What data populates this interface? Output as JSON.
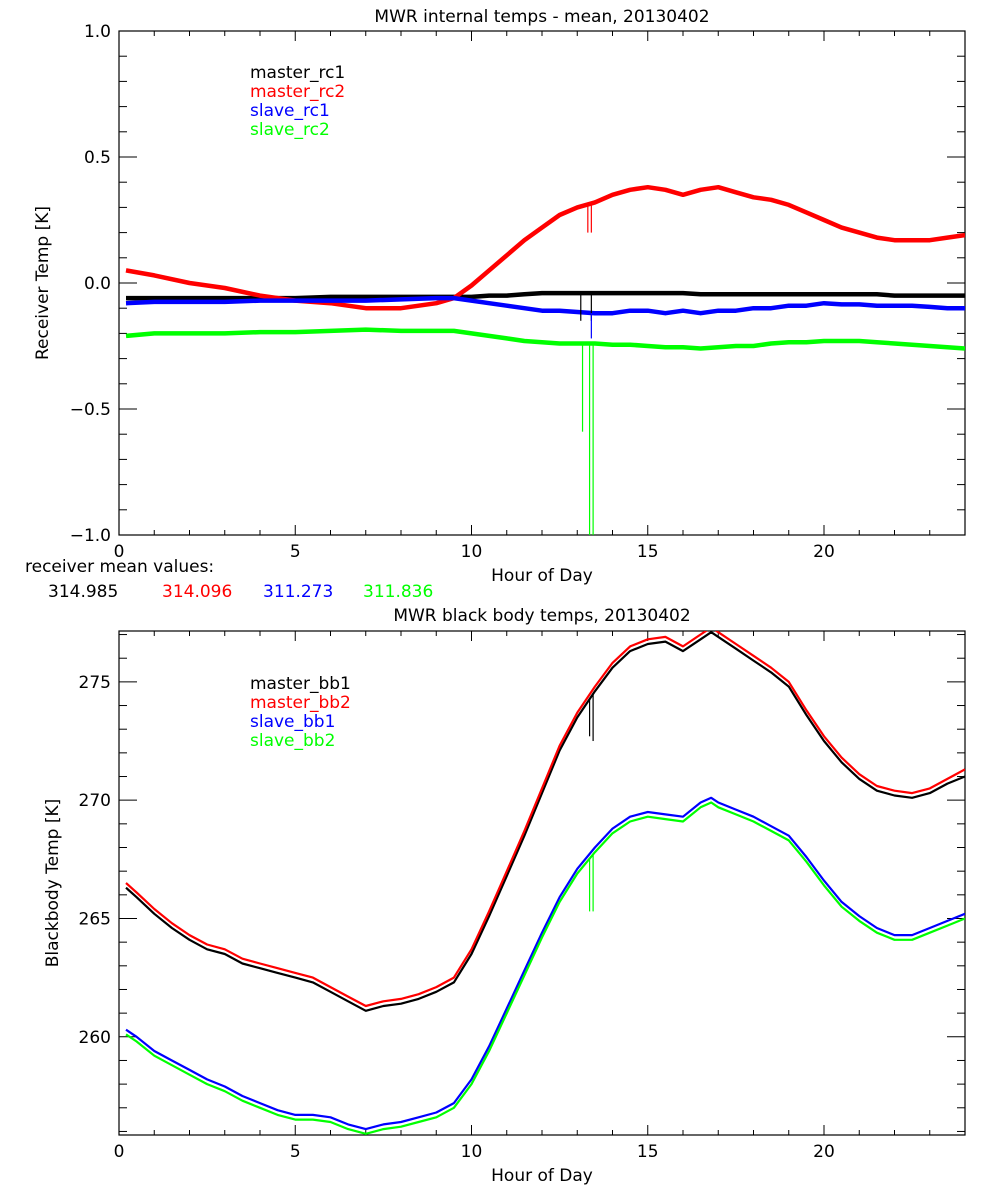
{
  "chart_data": [
    {
      "type": "line",
      "title": "MWR internal temps - mean, 20130402",
      "xlabel": "Hour of Day",
      "ylabel": "Receiver Temp [K]",
      "xlim": [
        0,
        24
      ],
      "ylim": [
        -1.0,
        1.0
      ],
      "xticks": [
        0,
        5,
        10,
        15,
        20
      ],
      "xtick_labels": [
        "0",
        "5",
        "10",
        "15",
        "20"
      ],
      "x_minor_step": 1,
      "yticks": [
        -1.0,
        -0.5,
        0.0,
        0.5,
        1.0
      ],
      "ytick_labels": [
        "-1.0",
        "-0.5",
        "0.0",
        "0.5",
        "1.0"
      ],
      "y_minor_step": 0.1,
      "grid": false,
      "legend_position": "top-left",
      "x": [
        0.2,
        1,
        2,
        3,
        4,
        5,
        6,
        7,
        8,
        9,
        9.5,
        10,
        10.5,
        11,
        11.5,
        12,
        12.5,
        13,
        13.5,
        14,
        14.5,
        15,
        15.5,
        16,
        16.5,
        17,
        17.5,
        18,
        18.5,
        19,
        19.5,
        20,
        20.5,
        21,
        21.5,
        22,
        22.5,
        23,
        23.5,
        24
      ],
      "series": [
        {
          "name": "master_rc1",
          "color": "#000000",
          "values": [
            -0.06,
            -0.06,
            -0.06,
            -0.06,
            -0.06,
            -0.06,
            -0.055,
            -0.055,
            -0.055,
            -0.055,
            -0.055,
            -0.055,
            -0.05,
            -0.05,
            -0.045,
            -0.04,
            -0.04,
            -0.04,
            -0.04,
            -0.04,
            -0.04,
            -0.04,
            -0.04,
            -0.04,
            -0.045,
            -0.045,
            -0.045,
            -0.045,
            -0.045,
            -0.045,
            -0.045,
            -0.045,
            -0.045,
            -0.045,
            -0.045,
            -0.05,
            -0.05,
            -0.05,
            -0.05,
            -0.05
          ]
        },
        {
          "name": "master_rc2",
          "color": "#ff0000",
          "values": [
            0.05,
            0.03,
            0.0,
            -0.02,
            -0.05,
            -0.07,
            -0.08,
            -0.1,
            -0.1,
            -0.08,
            -0.06,
            -0.01,
            0.05,
            0.11,
            0.17,
            0.22,
            0.27,
            0.3,
            0.32,
            0.35,
            0.37,
            0.38,
            0.37,
            0.35,
            0.37,
            0.38,
            0.36,
            0.34,
            0.33,
            0.31,
            0.28,
            0.25,
            0.22,
            0.2,
            0.18,
            0.17,
            0.17,
            0.17,
            0.18,
            0.19
          ]
        },
        {
          "name": "slave_rc1",
          "color": "#0000ff",
          "values": [
            -0.08,
            -0.075,
            -0.075,
            -0.075,
            -0.07,
            -0.07,
            -0.07,
            -0.07,
            -0.065,
            -0.06,
            -0.06,
            -0.07,
            -0.08,
            -0.09,
            -0.1,
            -0.11,
            -0.11,
            -0.115,
            -0.12,
            -0.12,
            -0.11,
            -0.11,
            -0.12,
            -0.11,
            -0.12,
            -0.11,
            -0.11,
            -0.1,
            -0.1,
            -0.09,
            -0.09,
            -0.08,
            -0.085,
            -0.085,
            -0.09,
            -0.09,
            -0.09,
            -0.095,
            -0.1,
            -0.1
          ]
        },
        {
          "name": "slave_rc2",
          "color": "#00ff00",
          "values": [
            -0.21,
            -0.2,
            -0.2,
            -0.2,
            -0.195,
            -0.195,
            -0.19,
            -0.185,
            -0.19,
            -0.19,
            -0.19,
            -0.2,
            -0.21,
            -0.22,
            -0.23,
            -0.235,
            -0.24,
            -0.24,
            -0.24,
            -0.245,
            -0.245,
            -0.25,
            -0.255,
            -0.255,
            -0.26,
            -0.255,
            -0.25,
            -0.25,
            -0.24,
            -0.235,
            -0.235,
            -0.23,
            -0.23,
            -0.23,
            -0.235,
            -0.24,
            -0.245,
            -0.25,
            -0.255,
            -0.26
          ]
        }
      ],
      "spikes": [
        {
          "series": "master_rc2",
          "x": 13.3,
          "to": 0.2
        },
        {
          "series": "master_rc2",
          "x": 13.4,
          "to": 0.2
        },
        {
          "series": "master_rc1",
          "x": 13.1,
          "to": -0.15
        },
        {
          "series": "master_rc1",
          "x": 13.4,
          "to": -0.15
        },
        {
          "series": "slave_rc1",
          "x": 13.4,
          "to": -0.22
        },
        {
          "series": "slave_rc2",
          "x": 13.15,
          "to": -0.59
        },
        {
          "series": "slave_rc2",
          "x": 13.35,
          "to": -1.0
        },
        {
          "series": "slave_rc2",
          "x": 13.45,
          "to": -1.0
        }
      ],
      "annotation": {
        "label": "receiver mean values:",
        "values": [
          {
            "text": "314.985",
            "color": "#000000"
          },
          {
            "text": "314.096",
            "color": "#ff0000"
          },
          {
            "text": "311.273",
            "color": "#0000ff"
          },
          {
            "text": "311.836",
            "color": "#00ff00"
          }
        ]
      }
    },
    {
      "type": "line",
      "title": "MWR black body temps, 20130402",
      "xlabel": "Hour of Day",
      "ylabel": "Blackbody Temp [K]",
      "xlim": [
        0,
        24
      ],
      "ylim": [
        255.85,
        277.15
      ],
      "xticks": [
        0,
        5,
        10,
        15,
        20
      ],
      "xtick_labels": [
        "0",
        "5",
        "10",
        "15",
        "20"
      ],
      "x_minor_step": 1,
      "yticks": [
        260,
        265,
        270,
        275
      ],
      "ytick_labels": [
        "260",
        "265",
        "270",
        "275"
      ],
      "y_minor_step": 1,
      "grid": false,
      "legend_position": "top-left",
      "x": [
        0.2,
        0.5,
        1,
        1.5,
        2,
        2.5,
        3,
        3.5,
        4,
        4.5,
        5,
        5.5,
        6,
        6.5,
        7,
        7.5,
        8,
        8.5,
        9,
        9.5,
        10,
        10.5,
        11,
        11.5,
        12,
        12.5,
        13,
        13.5,
        14,
        14.5,
        15,
        15.5,
        16,
        16.5,
        16.8,
        17,
        17.5,
        18,
        18.5,
        19,
        19.5,
        20,
        20.5,
        21,
        21.5,
        22,
        22.5,
        23,
        23.5,
        24
      ],
      "series": [
        {
          "name": "master_bb1",
          "color": "#000000",
          "values": [
            266.3,
            265.9,
            265.2,
            264.6,
            264.1,
            263.7,
            263.5,
            263.1,
            262.9,
            262.7,
            262.5,
            262.3,
            261.9,
            261.5,
            261.1,
            261.3,
            261.4,
            261.6,
            261.9,
            262.3,
            263.5,
            265.1,
            266.8,
            268.5,
            270.3,
            272.1,
            273.5,
            274.6,
            275.6,
            276.3,
            276.6,
            276.7,
            276.3,
            276.8,
            277.1,
            276.9,
            276.4,
            275.9,
            275.4,
            274.8,
            273.6,
            272.5,
            271.6,
            270.9,
            270.4,
            270.2,
            270.1,
            270.3,
            270.7,
            271.0
          ]
        },
        {
          "name": "master_bb2",
          "color": "#ff0000",
          "values": [
            266.5,
            266.1,
            265.4,
            264.8,
            264.3,
            263.9,
            263.7,
            263.3,
            263.1,
            262.9,
            262.7,
            262.5,
            262.1,
            261.7,
            261.3,
            261.5,
            261.6,
            261.8,
            262.1,
            262.5,
            263.7,
            265.3,
            267.0,
            268.7,
            270.5,
            272.3,
            273.7,
            274.8,
            275.8,
            276.5,
            276.8,
            276.9,
            276.5,
            277.0,
            277.3,
            277.1,
            276.6,
            276.1,
            275.6,
            275.0,
            273.8,
            272.7,
            271.8,
            271.1,
            270.6,
            270.4,
            270.3,
            270.5,
            270.9,
            271.3
          ]
        },
        {
          "name": "slave_bb1",
          "color": "#0000ff",
          "values": [
            260.3,
            260.0,
            259.4,
            259.0,
            258.6,
            258.2,
            257.9,
            257.5,
            257.2,
            256.9,
            256.7,
            256.7,
            256.6,
            256.3,
            256.1,
            256.3,
            256.4,
            256.6,
            256.8,
            257.2,
            258.2,
            259.6,
            261.2,
            262.8,
            264.4,
            265.9,
            267.1,
            268.0,
            268.8,
            269.3,
            269.5,
            269.4,
            269.3,
            269.9,
            270.1,
            269.9,
            269.6,
            269.3,
            268.9,
            268.5,
            267.6,
            266.6,
            265.7,
            265.1,
            264.6,
            264.3,
            264.3,
            264.6,
            264.9,
            265.2
          ]
        },
        {
          "name": "slave_bb2",
          "color": "#00ff00",
          "values": [
            260.1,
            259.8,
            259.2,
            258.8,
            258.4,
            258.0,
            257.7,
            257.3,
            257.0,
            256.7,
            256.5,
            256.5,
            256.4,
            256.1,
            255.9,
            256.1,
            256.2,
            256.4,
            256.6,
            257.0,
            258.0,
            259.4,
            261.0,
            262.6,
            264.2,
            265.7,
            266.9,
            267.8,
            268.6,
            269.1,
            269.3,
            269.2,
            269.1,
            269.7,
            269.9,
            269.7,
            269.4,
            269.1,
            268.7,
            268.3,
            267.4,
            266.4,
            265.5,
            264.9,
            264.4,
            264.1,
            264.1,
            264.4,
            264.7,
            265.0
          ]
        }
      ],
      "spikes": [
        {
          "series": "master_bb1",
          "x": 13.35,
          "to": 272.7
        },
        {
          "series": "master_bb1",
          "x": 13.45,
          "to": 272.5
        },
        {
          "series": "slave_bb2",
          "x": 13.35,
          "to": 265.3
        },
        {
          "series": "slave_bb2",
          "x": 13.45,
          "to": 265.3
        }
      ]
    }
  ]
}
